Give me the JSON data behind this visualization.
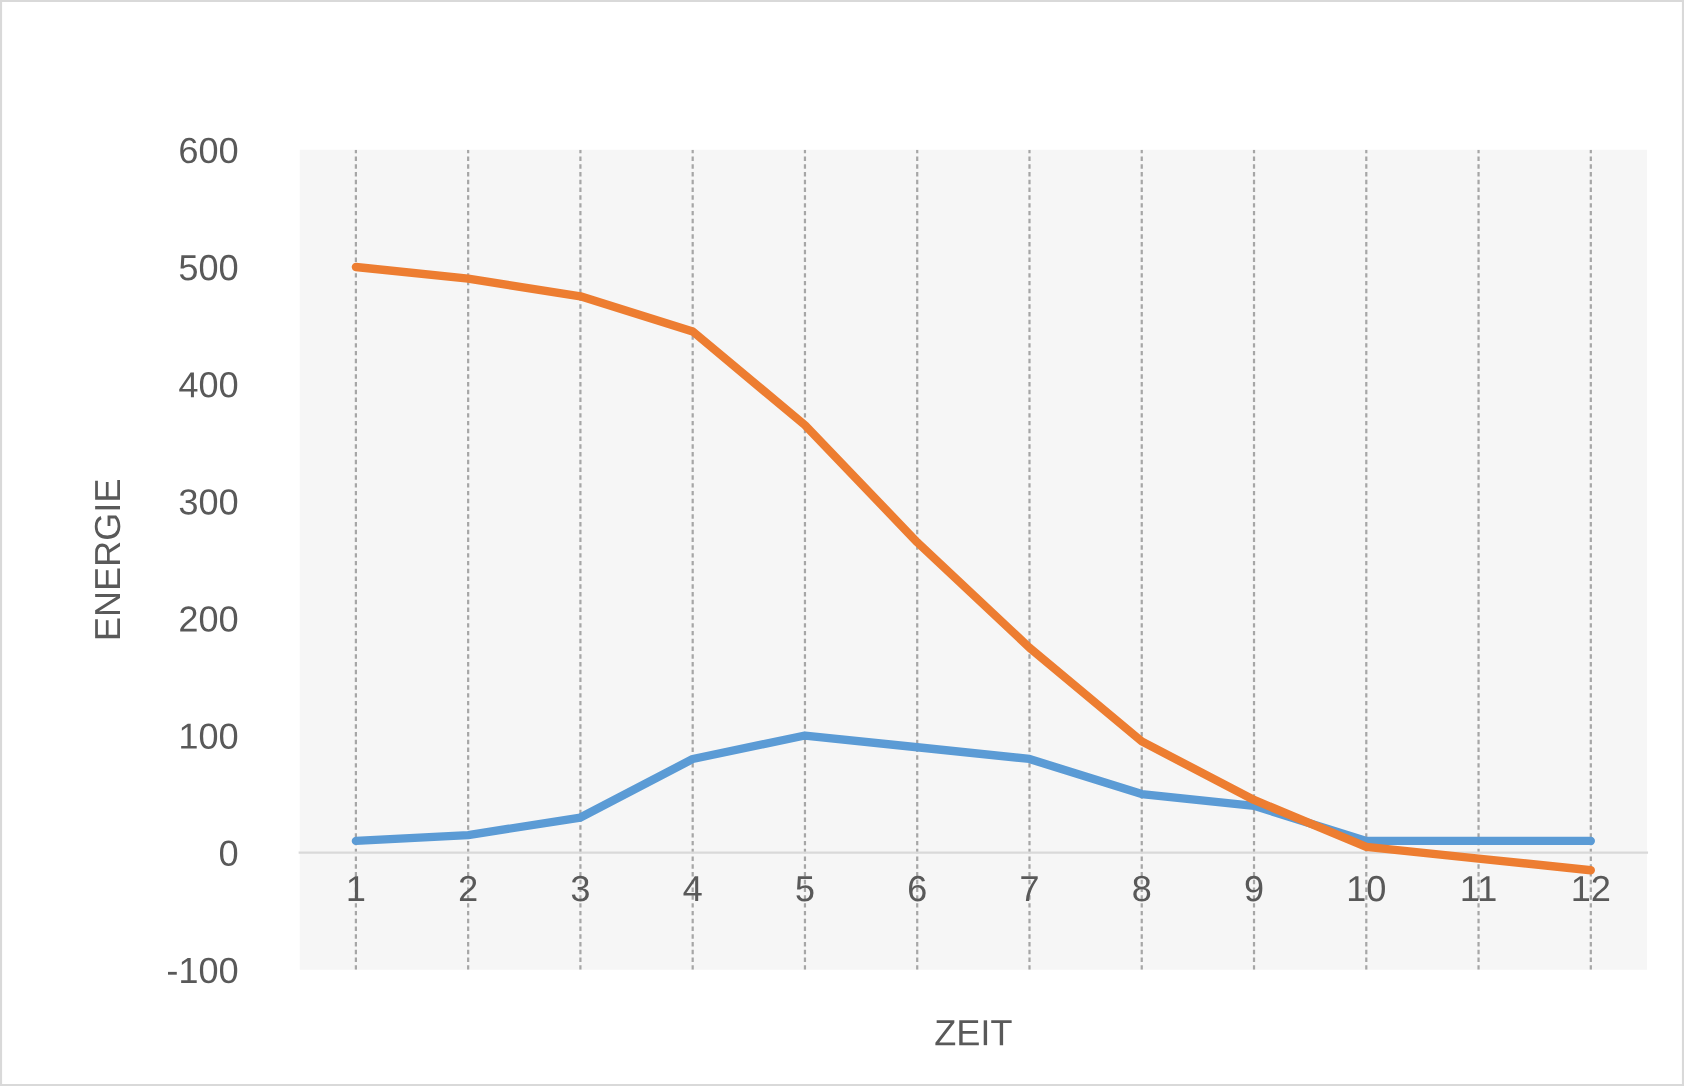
{
  "chart_data": {
    "type": "line",
    "xlabel": "ZEIT",
    "ylabel": "ENERGIE",
    "categories": [
      "1",
      "2",
      "3",
      "4",
      "5",
      "6",
      "7",
      "8",
      "9",
      "10",
      "11",
      "12"
    ],
    "series": [
      {
        "color": "#5b9bd5",
        "values": [
          10,
          15,
          30,
          80,
          100,
          90,
          80,
          50,
          40,
          10,
          10,
          10
        ]
      },
      {
        "color": "#ed7d31",
        "values": [
          500,
          490,
          475,
          445,
          365,
          265,
          175,
          95,
          45,
          5,
          -5,
          -15
        ]
      }
    ],
    "ylim": [
      -100,
      600
    ],
    "yticks": [
      -100,
      0,
      100,
      200,
      300,
      400,
      500,
      600
    ],
    "grid": "x",
    "legend": false,
    "marker": "none",
    "line_style": "solid"
  }
}
